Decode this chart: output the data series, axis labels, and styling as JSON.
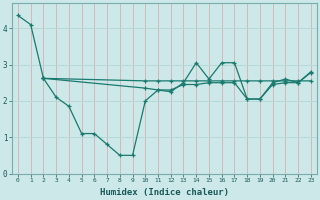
{
  "xlabel": "Humidex (Indice chaleur)",
  "xlim": [
    -0.5,
    23.5
  ],
  "ylim": [
    0,
    4.7
  ],
  "yticks": [
    0,
    1,
    2,
    3,
    4
  ],
  "xticks": [
    0,
    1,
    2,
    3,
    4,
    5,
    6,
    7,
    8,
    9,
    10,
    11,
    12,
    13,
    14,
    15,
    16,
    17,
    18,
    19,
    20,
    21,
    22,
    23
  ],
  "bg_color": "#cce8e8",
  "line_color": "#1a7a6e",
  "grid_color_h": "#b8d8d8",
  "grid_color_v": "#d4b8b8",
  "lines": [
    [
      [
        0,
        1,
        2
      ],
      [
        4.35,
        4.1,
        2.62
      ]
    ],
    [
      [
        2,
        3,
        4,
        5,
        6,
        7,
        8,
        9,
        10,
        11,
        12,
        13,
        14,
        15,
        16,
        17,
        18,
        19,
        20,
        21,
        22,
        23
      ],
      [
        2.62,
        2.1,
        1.85,
        1.1,
        1.1,
        0.8,
        0.5,
        0.5,
        2.0,
        2.3,
        2.25,
        2.5,
        3.05,
        2.6,
        3.05,
        3.05,
        2.05,
        2.05,
        2.5,
        2.6,
        2.5,
        2.8
      ]
    ],
    [
      [
        2,
        10,
        11,
        12,
        13,
        14,
        15,
        16,
        17,
        18,
        19,
        20,
        21,
        22,
        23
      ],
      [
        2.62,
        2.55,
        2.55,
        2.55,
        2.55,
        2.55,
        2.55,
        2.55,
        2.55,
        2.55,
        2.55,
        2.55,
        2.55,
        2.55,
        2.55
      ]
    ],
    [
      [
        2,
        10,
        11,
        12,
        13,
        14,
        15,
        16,
        17,
        18,
        19,
        20,
        21,
        22,
        23
      ],
      [
        2.62,
        2.35,
        2.3,
        2.3,
        2.45,
        2.45,
        2.5,
        2.5,
        2.5,
        2.05,
        2.05,
        2.45,
        2.5,
        2.5,
        2.78
      ]
    ]
  ]
}
